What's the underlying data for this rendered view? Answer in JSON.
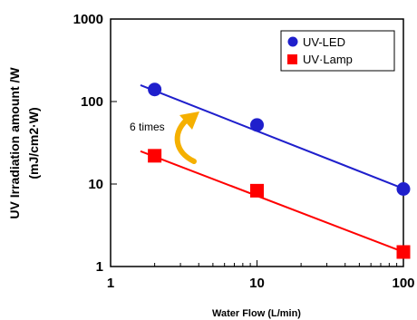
{
  "chart_data": {
    "type": "scatter",
    "xlabel": "Water Flow (L/min)",
    "ylabel_line1": "UV Irradiation amount /W",
    "ylabel_line2": "(mJ/cm2·W)",
    "x_scale": "log",
    "y_scale": "log",
    "xlim": [
      1,
      100
    ],
    "ylim": [
      1,
      1000
    ],
    "x_ticks": [
      "1",
      "10",
      "100"
    ],
    "y_ticks": [
      "1",
      "10",
      "100",
      "1000"
    ],
    "grid": false,
    "legend_position": "top-right",
    "series": [
      {
        "name": "UV-LED",
        "marker": "circle",
        "color": "#1f1fcc",
        "x": [
          2,
          10,
          100
        ],
        "y": [
          140,
          52,
          8.7
        ],
        "trendline": {
          "x": [
            1.6,
            100
          ],
          "y": [
            158,
            8.8
          ]
        }
      },
      {
        "name": "UV·Lamp",
        "marker": "square",
        "color": "#ff0000",
        "x": [
          2,
          10,
          100
        ],
        "y": [
          22,
          8.3,
          1.5
        ],
        "trendline": {
          "x": [
            1.6,
            100
          ],
          "y": [
            25,
            1.5
          ]
        }
      }
    ],
    "annotations": [
      {
        "text": "6 times",
        "arrow_color": "#f5b000"
      }
    ]
  }
}
